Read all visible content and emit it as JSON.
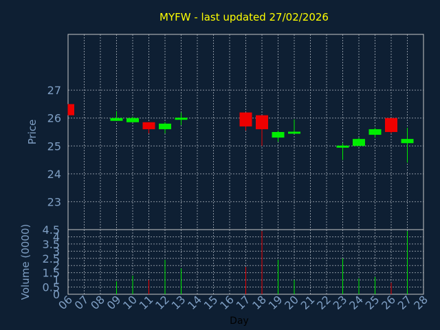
{
  "title": "MYFW - last updated 27/02/2026",
  "chart_data": [
    {
      "type": "candlestick",
      "ylabel": "Price",
      "ylim": [
        22,
        29
      ],
      "yticks": [
        "23",
        "24",
        "25",
        "26",
        "27"
      ],
      "grid": true,
      "candles": [
        {
          "day": "06",
          "open": 26.5,
          "high": 26.5,
          "low": 26.1,
          "close": 26.1
        },
        {
          "day": "09",
          "open": 25.9,
          "high": 26.25,
          "low": 25.9,
          "close": 26.0
        },
        {
          "day": "10",
          "open": 25.85,
          "high": 26.05,
          "low": 25.85,
          "close": 26.0
        },
        {
          "day": "11",
          "open": 25.85,
          "high": 25.85,
          "low": 25.45,
          "close": 25.6
        },
        {
          "day": "12",
          "open": 25.6,
          "high": 25.85,
          "low": 25.45,
          "close": 25.8
        },
        {
          "day": "13",
          "open": 25.95,
          "high": 26.2,
          "low": 25.75,
          "close": 26.0
        },
        {
          "day": "17",
          "open": 26.2,
          "high": 26.2,
          "low": 25.55,
          "close": 25.7
        },
        {
          "day": "18",
          "open": 26.1,
          "high": 26.1,
          "low": 25.0,
          "close": 25.6
        },
        {
          "day": "19",
          "open": 25.3,
          "high": 25.55,
          "low": 25.15,
          "close": 25.5
        },
        {
          "day": "20",
          "open": 25.45,
          "high": 25.95,
          "low": 25.45,
          "close": 25.5
        },
        {
          "day": "23",
          "open": 24.95,
          "high": 25.1,
          "low": 24.5,
          "close": 25.0
        },
        {
          "day": "24",
          "open": 25.0,
          "high": 25.3,
          "low": 25.0,
          "close": 25.25
        },
        {
          "day": "25",
          "open": 25.4,
          "high": 25.65,
          "low": 25.3,
          "close": 25.6
        },
        {
          "day": "26",
          "open": 26.0,
          "high": 26.0,
          "low": 25.45,
          "close": 25.5
        },
        {
          "day": "27",
          "open": 25.1,
          "high": 25.65,
          "low": 24.4,
          "close": 25.25
        }
      ]
    },
    {
      "type": "bar",
      "ylabel": "Volume (0000)",
      "xlabel": "Day",
      "ylim": [
        0,
        4.5
      ],
      "yticks": [
        "0",
        "0.5",
        "1",
        "1.5",
        "2",
        "2.5",
        "3",
        "3.5",
        "4",
        "4.5"
      ],
      "categories": [
        "06",
        "07",
        "08",
        "09",
        "10",
        "11",
        "12",
        "13",
        "14",
        "15",
        "16",
        "17",
        "18",
        "19",
        "20",
        "21",
        "22",
        "23",
        "24",
        "25",
        "26",
        "27",
        "28"
      ],
      "volumes": [
        {
          "day": "09",
          "value": 0.9,
          "direction": "up"
        },
        {
          "day": "10",
          "value": 1.3,
          "direction": "up"
        },
        {
          "day": "11",
          "value": 1.0,
          "direction": "down"
        },
        {
          "day": "12",
          "value": 2.4,
          "direction": "up"
        },
        {
          "day": "13",
          "value": 1.8,
          "direction": "up"
        },
        {
          "day": "17",
          "value": 1.9,
          "direction": "down"
        },
        {
          "day": "18",
          "value": 4.4,
          "direction": "down"
        },
        {
          "day": "19",
          "value": 2.4,
          "direction": "up"
        },
        {
          "day": "20",
          "value": 1.0,
          "direction": "up"
        },
        {
          "day": "23",
          "value": 2.5,
          "direction": "up"
        },
        {
          "day": "24",
          "value": 1.1,
          "direction": "up"
        },
        {
          "day": "25",
          "value": 1.2,
          "direction": "up"
        },
        {
          "day": "26",
          "value": 0.8,
          "direction": "down"
        },
        {
          "day": "27",
          "value": 4.4,
          "direction": "up"
        }
      ]
    }
  ],
  "colors": {
    "background": "#0e1f33",
    "frame": "#c8c8c8",
    "grid": "#8a94a0",
    "title": "#ffff00",
    "label": "#7f9fc4",
    "up": "#00ee00",
    "down": "#ee0000"
  }
}
